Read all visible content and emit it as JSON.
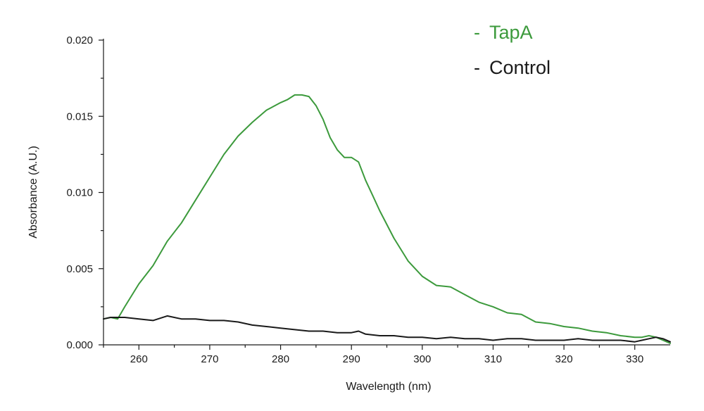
{
  "chart_data": {
    "type": "line",
    "title": "",
    "xlabel": "Wavelength (nm)",
    "ylabel": "Absorbance (A.U.)",
    "xlim": [
      255,
      335
    ],
    "ylim": [
      0.0,
      0.02
    ],
    "x_ticks": [
      260,
      270,
      280,
      290,
      300,
      310,
      320,
      330
    ],
    "x_tick_labels": [
      "260",
      "270",
      "280",
      "290",
      "300",
      "310",
      "320",
      "330"
    ],
    "y_ticks": [
      0.0,
      0.005,
      0.01,
      0.015,
      0.02
    ],
    "y_tick_labels": [
      "0.000",
      "0.005",
      "0.010",
      "0.015",
      "0.020"
    ],
    "grid": false,
    "legend": {
      "placement": "top-right",
      "marker": "-"
    },
    "series": [
      {
        "name": "TapA",
        "color": "#3c9a3c",
        "x": [
          255,
          256,
          257,
          258,
          260,
          262,
          264,
          266,
          268,
          270,
          272,
          274,
          276,
          278,
          280,
          281,
          282,
          283,
          284,
          285,
          286,
          287,
          288,
          289,
          290,
          291,
          292,
          293,
          294,
          296,
          298,
          300,
          302,
          304,
          306,
          308,
          310,
          312,
          314,
          316,
          318,
          320,
          322,
          324,
          326,
          328,
          330,
          331,
          332,
          333,
          334,
          335
        ],
        "y": [
          0.0017,
          0.0018,
          0.0017,
          0.0025,
          0.004,
          0.0052,
          0.0068,
          0.008,
          0.0095,
          0.011,
          0.0125,
          0.0137,
          0.0146,
          0.0154,
          0.0159,
          0.0161,
          0.0164,
          0.0164,
          0.0163,
          0.0157,
          0.0148,
          0.0136,
          0.0128,
          0.0123,
          0.0123,
          0.012,
          0.0108,
          0.0098,
          0.0088,
          0.007,
          0.0055,
          0.0045,
          0.0039,
          0.0038,
          0.0033,
          0.0028,
          0.0025,
          0.0021,
          0.002,
          0.0015,
          0.0014,
          0.0012,
          0.0011,
          0.0009,
          0.0008,
          0.0006,
          0.0005,
          0.0005,
          0.0006,
          0.0005,
          0.0003,
          0.0001
        ]
      },
      {
        "name": "Control",
        "color": "#1a1a1a",
        "x": [
          255,
          256,
          258,
          260,
          262,
          264,
          266,
          268,
          270,
          272,
          274,
          276,
          278,
          280,
          282,
          284,
          286,
          288,
          290,
          291,
          292,
          294,
          296,
          298,
          300,
          302,
          304,
          306,
          308,
          310,
          312,
          314,
          316,
          318,
          320,
          322,
          324,
          326,
          328,
          330,
          331,
          332,
          333,
          334,
          335
        ],
        "y": [
          0.0017,
          0.0018,
          0.0018,
          0.0017,
          0.0016,
          0.0019,
          0.0017,
          0.0017,
          0.0016,
          0.0016,
          0.0015,
          0.0013,
          0.0012,
          0.0011,
          0.001,
          0.0009,
          0.0009,
          0.0008,
          0.0008,
          0.0009,
          0.0007,
          0.0006,
          0.0006,
          0.0005,
          0.0005,
          0.0004,
          0.0005,
          0.0004,
          0.0004,
          0.0003,
          0.0004,
          0.0004,
          0.0003,
          0.0003,
          0.0003,
          0.0004,
          0.0003,
          0.0003,
          0.0003,
          0.0002,
          0.0003,
          0.0004,
          0.0005,
          0.0004,
          0.0002
        ]
      }
    ]
  }
}
